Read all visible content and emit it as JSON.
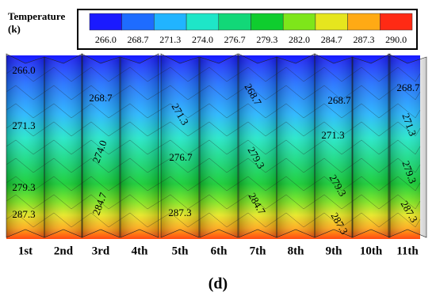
{
  "legend": {
    "title": "Temperature",
    "unit": "(k)",
    "levels": [
      "266.0",
      "268.7",
      "271.3",
      "274.0",
      "276.7",
      "279.3",
      "282.0",
      "284.7",
      "287.3",
      "290.0"
    ],
    "colors": [
      "#1a1aff",
      "#1e6cff",
      "#21b4ff",
      "#1ee6c8",
      "#12d878",
      "#0fcd2e",
      "#7ee61a",
      "#e6e61e",
      "#ffaa14",
      "#ff2a14"
    ]
  },
  "contour_labels": [
    "266.0",
    "268.7",
    "268.7",
    "268.7",
    "268.7",
    "271.3",
    "271.3",
    "271.3",
    "271.3",
    "274.0",
    "276.7",
    "279.3",
    "279.3",
    "279.3",
    "279.3",
    "284.7",
    "284.7",
    "287.3",
    "287.3",
    "287.3",
    "287.3"
  ],
  "fins": [
    "1st",
    "2nd",
    "3rd",
    "4th",
    "5th",
    "6th",
    "7th",
    "8th",
    "9th",
    "10th",
    "11th"
  ],
  "caption": "(d)"
}
